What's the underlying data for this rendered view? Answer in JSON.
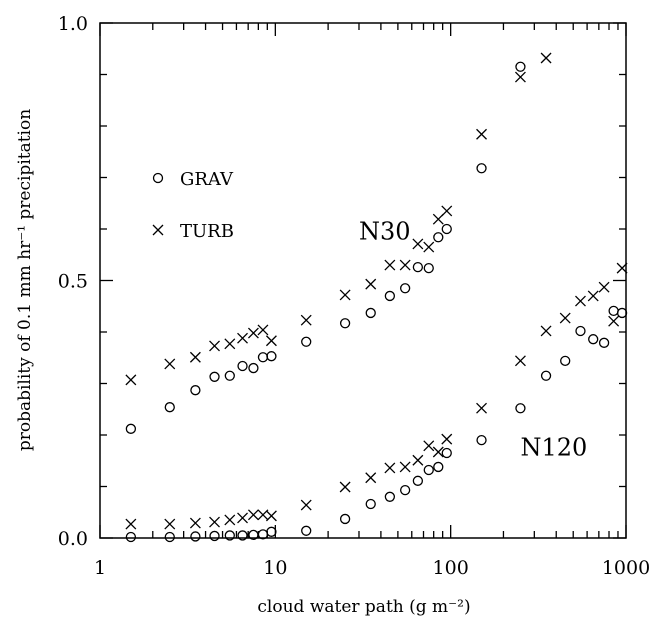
{
  "chart_data": {
    "type": "scatter",
    "xlabel": "cloud water path (g m⁻²)",
    "ylabel": "probability of 0.1 mm hr⁻¹ precipitation",
    "xscale": "log",
    "xlim": [
      1,
      1000
    ],
    "ylim": [
      0,
      1
    ],
    "xticks": [
      1,
      10,
      100,
      1000
    ],
    "xminorticks": [
      2,
      3,
      4,
      5,
      6,
      7,
      8,
      9,
      20,
      30,
      40,
      50,
      60,
      70,
      80,
      90,
      200,
      300,
      400,
      500,
      600,
      700,
      800,
      900
    ],
    "yticks": [
      {
        "value": 0,
        "label": "0.0"
      },
      0.5,
      {
        "value": 1,
        "label": "1.0"
      }
    ],
    "yminorticks": [
      0.1,
      0.2,
      0.3,
      0.4,
      0.6,
      0.7,
      0.8,
      0.9
    ],
    "color": "#000000",
    "annotations": [
      {
        "text": "N30",
        "x": 30,
        "y": 0.58
      },
      {
        "text": "N120",
        "x": 250,
        "y": 0.16
      }
    ],
    "series": [
      {
        "name": "GRAV",
        "marker": "circle",
        "x": [
          1.5,
          2.5,
          3.5,
          4.5,
          5.5,
          6.5,
          7.5,
          8.5,
          9.5,
          15,
          25,
          35,
          45,
          55,
          65,
          75,
          85,
          95,
          150,
          250,
          1.5,
          2.5,
          3.5,
          4.5,
          5.5,
          6.5,
          7.5,
          8.5,
          9.5,
          15,
          25,
          35,
          45,
          55,
          65,
          75,
          85,
          95,
          150,
          250,
          350,
          450,
          550,
          650,
          750,
          850,
          950
        ],
        "values": [
          0.212,
          0.254,
          0.287,
          0.313,
          0.315,
          0.334,
          0.33,
          0.351,
          0.353,
          0.381,
          0.417,
          0.437,
          0.47,
          0.485,
          0.526,
          0.524,
          0.584,
          0.6,
          0.718,
          0.915,
          0.002,
          0.002,
          0.003,
          0.004,
          0.005,
          0.005,
          0.006,
          0.007,
          0.012,
          0.014,
          0.037,
          0.066,
          0.08,
          0.093,
          0.111,
          0.132,
          0.138,
          0.165,
          0.19,
          0.252,
          0.315,
          0.344,
          0.402,
          0.386,
          0.379,
          0.441,
          0.437
        ]
      },
      {
        "name": "TURB",
        "marker": "cross",
        "x": [
          1.5,
          2.5,
          3.5,
          4.5,
          5.5,
          6.5,
          7.5,
          8.5,
          9.5,
          15,
          25,
          35,
          45,
          55,
          65,
          75,
          85,
          95,
          150,
          250,
          350,
          1.5,
          2.5,
          3.5,
          4.5,
          5.5,
          6.5,
          7.5,
          8.5,
          9.5,
          15,
          25,
          35,
          45,
          55,
          65,
          75,
          85,
          95,
          150,
          250,
          350,
          450,
          550,
          650,
          750,
          850,
          950
        ],
        "values": [
          0.307,
          0.338,
          0.351,
          0.373,
          0.377,
          0.388,
          0.398,
          0.404,
          0.383,
          0.423,
          0.472,
          0.493,
          0.53,
          0.53,
          0.571,
          0.565,
          0.619,
          0.635,
          0.784,
          0.895,
          0.932,
          0.027,
          0.027,
          0.029,
          0.031,
          0.035,
          0.039,
          0.045,
          0.045,
          0.043,
          0.064,
          0.099,
          0.117,
          0.136,
          0.138,
          0.151,
          0.179,
          0.167,
          0.192,
          0.252,
          0.344,
          0.402,
          0.427,
          0.46,
          0.47,
          0.487,
          0.421,
          0.524
        ]
      }
    ]
  }
}
